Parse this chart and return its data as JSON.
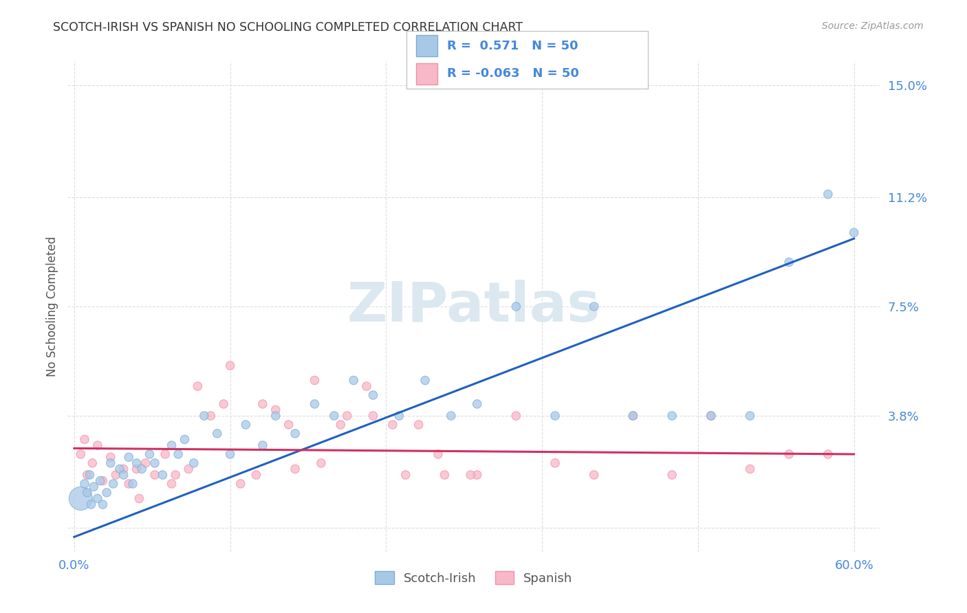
{
  "title": "SCOTCH-IRISH VS SPANISH NO SCHOOLING COMPLETED CORRELATION CHART",
  "source": "Source: ZipAtlas.com",
  "ylabel": "No Schooling Completed",
  "xlim": [
    -0.005,
    0.62
  ],
  "ylim": [
    -0.008,
    0.158
  ],
  "scotch_irish_R": 0.571,
  "scotch_irish_N": 50,
  "spanish_R": -0.063,
  "spanish_N": 50,
  "scotch_irish_color": "#a8c8e8",
  "scotch_irish_edge_color": "#7aafd4",
  "spanish_color": "#f8b8c8",
  "spanish_edge_color": "#f090a8",
  "scotch_irish_line_color": "#2060c0",
  "spanish_line_color": "#d03060",
  "legend_label_scotch": "Scotch-Irish",
  "legend_label_spanish": "Spanish",
  "watermark": "ZIPatlas",
  "watermark_color": "#dce8f0",
  "ytick_positions": [
    0.0,
    0.038,
    0.075,
    0.112,
    0.15
  ],
  "ytick_labels": [
    "",
    "3.8%",
    "7.5%",
    "11.2%",
    "15.0%"
  ],
  "xtick_positions": [
    0.0,
    0.6
  ],
  "xtick_labels": [
    "0.0%",
    "60.0%"
  ],
  "grid_xtick_positions": [
    0.0,
    0.12,
    0.24,
    0.36,
    0.48,
    0.6
  ],
  "si_x": [
    0.005,
    0.008,
    0.01,
    0.012,
    0.013,
    0.015,
    0.018,
    0.02,
    0.022,
    0.025,
    0.028,
    0.03,
    0.035,
    0.038,
    0.042,
    0.045,
    0.048,
    0.052,
    0.058,
    0.062,
    0.068,
    0.075,
    0.08,
    0.085,
    0.092,
    0.1,
    0.11,
    0.12,
    0.132,
    0.145,
    0.155,
    0.17,
    0.185,
    0.2,
    0.215,
    0.23,
    0.25,
    0.27,
    0.29,
    0.31,
    0.34,
    0.37,
    0.4,
    0.43,
    0.46,
    0.49,
    0.52,
    0.55,
    0.58,
    0.6
  ],
  "si_y": [
    0.01,
    0.015,
    0.012,
    0.018,
    0.008,
    0.014,
    0.01,
    0.016,
    0.008,
    0.012,
    0.022,
    0.015,
    0.02,
    0.018,
    0.024,
    0.015,
    0.022,
    0.02,
    0.025,
    0.022,
    0.018,
    0.028,
    0.025,
    0.03,
    0.022,
    0.038,
    0.032,
    0.025,
    0.035,
    0.028,
    0.038,
    0.032,
    0.042,
    0.038,
    0.05,
    0.045,
    0.038,
    0.05,
    0.038,
    0.042,
    0.075,
    0.038,
    0.075,
    0.038,
    0.038,
    0.038,
    0.038,
    0.09,
    0.113,
    0.1
  ],
  "si_sizes": [
    600,
    80,
    80,
    80,
    80,
    80,
    80,
    80,
    80,
    80,
    80,
    80,
    80,
    80,
    80,
    80,
    80,
    80,
    80,
    80,
    80,
    80,
    80,
    80,
    80,
    80,
    80,
    80,
    80,
    80,
    80,
    80,
    80,
    80,
    80,
    80,
    80,
    80,
    80,
    80,
    80,
    80,
    80,
    80,
    80,
    80,
    80,
    80,
    80,
    80
  ],
  "sp_x": [
    0.005,
    0.008,
    0.01,
    0.014,
    0.018,
    0.022,
    0.028,
    0.032,
    0.038,
    0.042,
    0.048,
    0.055,
    0.062,
    0.07,
    0.078,
    0.088,
    0.095,
    0.105,
    0.115,
    0.128,
    0.14,
    0.155,
    0.17,
    0.19,
    0.21,
    0.23,
    0.255,
    0.28,
    0.31,
    0.34,
    0.37,
    0.4,
    0.43,
    0.46,
    0.49,
    0.52,
    0.55,
    0.58,
    0.12,
    0.145,
    0.165,
    0.185,
    0.205,
    0.225,
    0.245,
    0.265,
    0.285,
    0.305,
    0.05,
    0.075
  ],
  "sp_y": [
    0.025,
    0.03,
    0.018,
    0.022,
    0.028,
    0.016,
    0.024,
    0.018,
    0.02,
    0.015,
    0.02,
    0.022,
    0.018,
    0.025,
    0.018,
    0.02,
    0.048,
    0.038,
    0.042,
    0.015,
    0.018,
    0.04,
    0.02,
    0.022,
    0.038,
    0.038,
    0.018,
    0.025,
    0.018,
    0.038,
    0.022,
    0.018,
    0.038,
    0.018,
    0.038,
    0.02,
    0.025,
    0.025,
    0.055,
    0.042,
    0.035,
    0.05,
    0.035,
    0.048,
    0.035,
    0.035,
    0.018,
    0.018,
    0.01,
    0.015
  ],
  "sp_sizes": [
    80,
    80,
    80,
    80,
    80,
    80,
    80,
    80,
    80,
    80,
    80,
    80,
    80,
    80,
    80,
    80,
    80,
    80,
    80,
    80,
    80,
    80,
    80,
    80,
    80,
    80,
    80,
    80,
    80,
    80,
    80,
    80,
    80,
    80,
    80,
    80,
    80,
    80,
    80,
    80,
    80,
    80,
    80,
    80,
    80,
    80,
    80,
    80,
    80,
    80
  ],
  "si_line_x": [
    0.0,
    0.6
  ],
  "si_line_y": [
    -0.003,
    0.098
  ],
  "sp_line_x": [
    0.0,
    0.6
  ],
  "sp_line_y": [
    0.027,
    0.025
  ]
}
